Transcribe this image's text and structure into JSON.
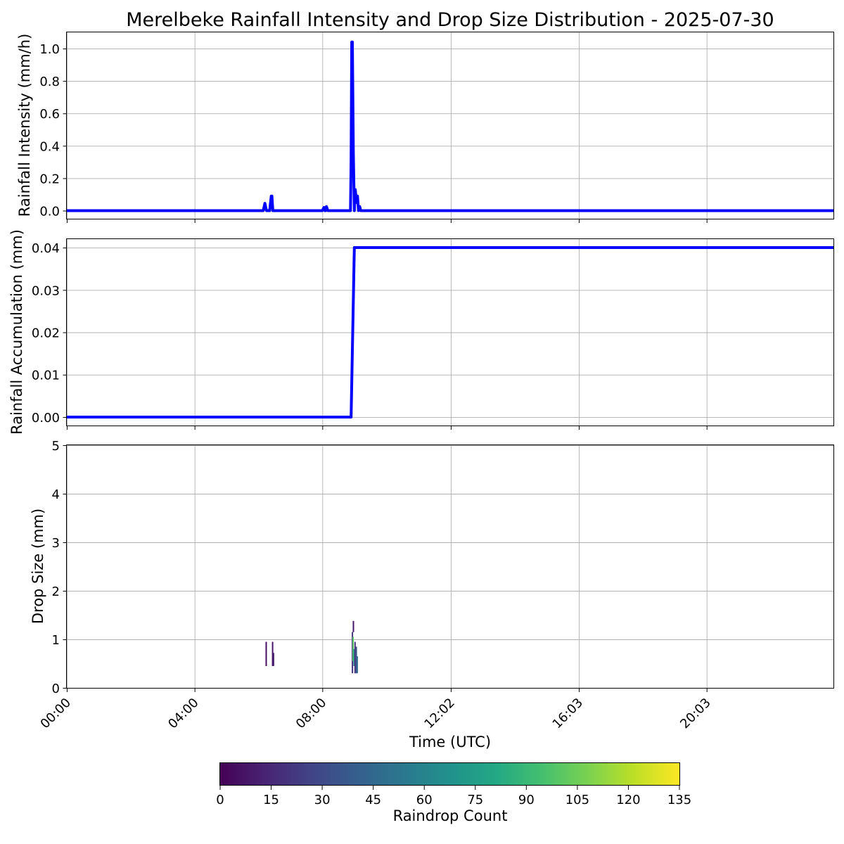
{
  "chart_data": [
    {
      "type": "line",
      "title": "Merelbeke Rainfall Intensity and Drop Size Distribution - 2025-07-30",
      "xlabel": "",
      "ylabel": "Rainfall Intensity (mm/h)",
      "x_domain_hours": [
        0,
        24
      ],
      "ylim": [
        -0.05,
        1.1
      ],
      "yticks": [
        "0.0",
        "0.2",
        "0.4",
        "0.6",
        "0.8",
        "1.0"
      ],
      "grid": true,
      "line_color": "#0000ff",
      "series": [
        {
          "x": [
            0,
            6.15,
            6.2,
            6.25,
            6.3,
            6.35,
            6.4,
            6.42,
            6.45,
            6.5,
            8.0,
            8.05,
            8.08,
            8.1,
            8.13,
            8.17,
            8.2,
            8.25,
            8.88,
            8.9,
            8.92,
            8.94,
            8.97,
            9.0,
            9.03,
            9.07,
            9.1,
            9.13,
            9.17,
            9.2,
            9.25,
            9.3,
            24
          ],
          "y": [
            0,
            0,
            0.045,
            0.0,
            0.0,
            0.0,
            0.09,
            0.09,
            0.0,
            0,
            0,
            0.02,
            0.0,
            0.0,
            0.025,
            0.0,
            0,
            0,
            0,
            0.3,
            1.04,
            1.04,
            0.35,
            0.0,
            0.13,
            0.05,
            0.09,
            0.0,
            0.025,
            0.0,
            0,
            0,
            0
          ]
        }
      ]
    },
    {
      "type": "line",
      "xlabel": "",
      "ylabel": "Rainfall Accumulation (mm)",
      "x_domain_hours": [
        0,
        24
      ],
      "ylim": [
        -0.002,
        0.042
      ],
      "yticks": [
        "0.00",
        "0.01",
        "0.02",
        "0.03",
        "0.04"
      ],
      "grid": true,
      "line_color": "#0000ff",
      "series": [
        {
          "x": [
            0,
            8.9,
            9.0,
            24
          ],
          "y": [
            0,
            0,
            0.04,
            0.04
          ]
        }
      ]
    },
    {
      "type": "heatmap",
      "xlabel": "Time (UTC)",
      "ylabel": "Drop Size (mm)",
      "x_domain_hours": [
        0,
        24
      ],
      "ylim": [
        0,
        5
      ],
      "yticks": [
        "0",
        "1",
        "2",
        "3",
        "4",
        "5"
      ],
      "xticks": [
        "00:00",
        "04:00",
        "08:00",
        "12:02",
        "16:03",
        "20:03"
      ],
      "xtick_hours": [
        0,
        4,
        8,
        12.02,
        16.03,
        20.03
      ],
      "grid": true,
      "colorbar": {
        "label": "Raindrop Count",
        "min": 0,
        "max": 135,
        "ticks": [
          "0",
          "15",
          "30",
          "45",
          "60",
          "75",
          "90",
          "105",
          "120",
          "135"
        ]
      },
      "cells": [
        {
          "t": 6.22,
          "d0": 0.45,
          "d1": 0.95,
          "count": 5
        },
        {
          "t": 6.42,
          "d0": 0.45,
          "d1": 0.95,
          "count": 8
        },
        {
          "t": 6.45,
          "d0": 0.45,
          "d1": 0.72,
          "count": 12
        },
        {
          "t": 8.92,
          "d0": 0.3,
          "d1": 1.15,
          "count": 20
        },
        {
          "t": 8.95,
          "d0": 1.15,
          "d1": 1.38,
          "count": 8
        },
        {
          "t": 8.94,
          "d0": 0.55,
          "d1": 1.05,
          "count": 100
        },
        {
          "t": 8.97,
          "d0": 0.45,
          "d1": 0.8,
          "count": 70
        },
        {
          "t": 9.0,
          "d0": 0.3,
          "d1": 0.95,
          "count": 20
        },
        {
          "t": 9.04,
          "d0": 0.3,
          "d1": 0.85,
          "count": 35
        },
        {
          "t": 9.07,
          "d0": 0.3,
          "d1": 0.65,
          "count": 45
        }
      ]
    }
  ]
}
